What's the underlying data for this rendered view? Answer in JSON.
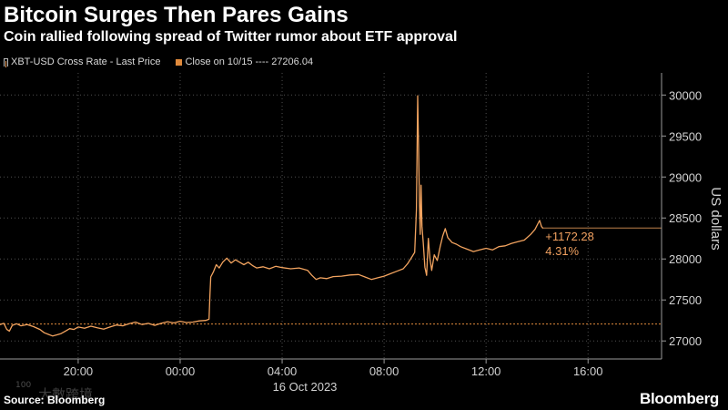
{
  "chart_data": {
    "type": "line",
    "title": "Bitcoin Surges Then Pares Gains",
    "subtitle": "Coin rallied following spread of Twitter rumor about ETF approval",
    "xlabel": "",
    "ylabel": "US dollars",
    "x_date_label": "16 Oct 2023",
    "xlim": [
      "2023-10-15T16:56",
      "2023-10-16T18:53"
    ],
    "ylim": [
      26780,
      30270
    ],
    "y_ticks": [
      27000,
      27500,
      28000,
      28500,
      29000,
      29500,
      30000
    ],
    "x_ticks": [
      {
        "t": "2023-10-15T20:00",
        "label": "20:00"
      },
      {
        "t": "2023-10-16T00:00",
        "label": "00:00"
      },
      {
        "t": "2023-10-16T04:00",
        "label": "04:00"
      },
      {
        "t": "2023-10-16T08:00",
        "label": "08:00"
      },
      {
        "t": "2023-10-16T12:00",
        "label": "12:00"
      },
      {
        "t": "2023-10-16T16:00",
        "label": "16:00"
      }
    ],
    "grid": true,
    "y_axis_side": "right",
    "legend_position": "top-left",
    "series": [
      {
        "name": "XBT-USD Cross Rate - Last Price",
        "color": "#f2a35f",
        "points": [
          [
            "2023-10-15T16:56",
            27200
          ],
          [
            "2023-10-15T17:05",
            27215
          ],
          [
            "2023-10-15T17:12",
            27140
          ],
          [
            "2023-10-15T17:18",
            27120
          ],
          [
            "2023-10-15T17:25",
            27190
          ],
          [
            "2023-10-15T17:35",
            27210
          ],
          [
            "2023-10-15T17:45",
            27185
          ],
          [
            "2023-10-15T18:00",
            27200
          ],
          [
            "2023-10-15T18:15",
            27175
          ],
          [
            "2023-10-15T18:30",
            27140
          ],
          [
            "2023-10-15T18:40",
            27100
          ],
          [
            "2023-10-15T18:50",
            27080
          ],
          [
            "2023-10-15T19:00",
            27060
          ],
          [
            "2023-10-15T19:10",
            27075
          ],
          [
            "2023-10-15T19:20",
            27090
          ],
          [
            "2023-10-15T19:30",
            27120
          ],
          [
            "2023-10-15T19:40",
            27150
          ],
          [
            "2023-10-15T19:50",
            27140
          ],
          [
            "2023-10-15T20:00",
            27170
          ],
          [
            "2023-10-15T20:15",
            27155
          ],
          [
            "2023-10-15T20:30",
            27180
          ],
          [
            "2023-10-15T20:45",
            27160
          ],
          [
            "2023-10-15T21:00",
            27145
          ],
          [
            "2023-10-15T21:15",
            27170
          ],
          [
            "2023-10-15T21:30",
            27195
          ],
          [
            "2023-10-15T21:45",
            27185
          ],
          [
            "2023-10-15T22:00",
            27210
          ],
          [
            "2023-10-15T22:15",
            27230
          ],
          [
            "2023-10-15T22:30",
            27200
          ],
          [
            "2023-10-15T22:45",
            27215
          ],
          [
            "2023-10-15T23:00",
            27190
          ],
          [
            "2023-10-15T23:15",
            27215
          ],
          [
            "2023-10-15T23:30",
            27235
          ],
          [
            "2023-10-15T23:45",
            27220
          ],
          [
            "2023-10-16T00:00",
            27240
          ],
          [
            "2023-10-16T00:15",
            27225
          ],
          [
            "2023-10-16T00:30",
            27230
          ],
          [
            "2023-10-16T00:45",
            27245
          ],
          [
            "2023-10-16T01:00",
            27250
          ],
          [
            "2023-10-16T01:08",
            27265
          ],
          [
            "2023-10-16T01:10",
            27560
          ],
          [
            "2023-10-16T01:12",
            27780
          ],
          [
            "2023-10-16T01:18",
            27840
          ],
          [
            "2023-10-16T01:25",
            27930
          ],
          [
            "2023-10-16T01:32",
            27890
          ],
          [
            "2023-10-16T01:40",
            27960
          ],
          [
            "2023-10-16T01:50",
            28010
          ],
          [
            "2023-10-16T02:00",
            27950
          ],
          [
            "2023-10-16T02:10",
            27990
          ],
          [
            "2023-10-16T02:20",
            27960
          ],
          [
            "2023-10-16T02:30",
            27930
          ],
          [
            "2023-10-16T02:40",
            27960
          ],
          [
            "2023-10-16T02:50",
            27920
          ],
          [
            "2023-10-16T03:00",
            27890
          ],
          [
            "2023-10-16T03:15",
            27905
          ],
          [
            "2023-10-16T03:30",
            27880
          ],
          [
            "2023-10-16T03:45",
            27910
          ],
          [
            "2023-10-16T04:00",
            27895
          ],
          [
            "2023-10-16T04:20",
            27880
          ],
          [
            "2023-10-16T04:40",
            27890
          ],
          [
            "2023-10-16T05:00",
            27860
          ],
          [
            "2023-10-16T05:10",
            27800
          ],
          [
            "2023-10-16T05:20",
            27750
          ],
          [
            "2023-10-16T05:30",
            27770
          ],
          [
            "2023-10-16T05:45",
            27760
          ],
          [
            "2023-10-16T06:00",
            27785
          ],
          [
            "2023-10-16T06:20",
            27790
          ],
          [
            "2023-10-16T06:40",
            27805
          ],
          [
            "2023-10-16T07:00",
            27810
          ],
          [
            "2023-10-16T07:15",
            27780
          ],
          [
            "2023-10-16T07:30",
            27750
          ],
          [
            "2023-10-16T07:45",
            27770
          ],
          [
            "2023-10-16T08:00",
            27790
          ],
          [
            "2023-10-16T08:15",
            27820
          ],
          [
            "2023-10-16T08:30",
            27850
          ],
          [
            "2023-10-16T08:45",
            27880
          ],
          [
            "2023-10-16T08:55",
            27940
          ],
          [
            "2023-10-16T09:05",
            28020
          ],
          [
            "2023-10-16T09:12",
            28080
          ],
          [
            "2023-10-16T09:16",
            28600
          ],
          [
            "2023-10-16T09:19",
            29990
          ],
          [
            "2023-10-16T09:21",
            29400
          ],
          [
            "2023-10-16T09:23",
            28700
          ],
          [
            "2023-10-16T09:25",
            28300
          ],
          [
            "2023-10-16T09:27",
            28900
          ],
          [
            "2023-10-16T09:29",
            28400
          ],
          [
            "2023-10-16T09:32",
            28200
          ],
          [
            "2023-10-16T09:36",
            27900
          ],
          [
            "2023-10-16T09:40",
            27800
          ],
          [
            "2023-10-16T09:44",
            28250
          ],
          [
            "2023-10-16T09:48",
            28000
          ],
          [
            "2023-10-16T09:52",
            27860
          ],
          [
            "2023-10-16T09:58",
            28050
          ],
          [
            "2023-10-16T10:05",
            27980
          ],
          [
            "2023-10-16T10:12",
            28150
          ],
          [
            "2023-10-16T10:18",
            28280
          ],
          [
            "2023-10-16T10:24",
            28370
          ],
          [
            "2023-10-16T10:30",
            28260
          ],
          [
            "2023-10-16T10:40",
            28200
          ],
          [
            "2023-10-16T10:50",
            28180
          ],
          [
            "2023-10-16T11:00",
            28150
          ],
          [
            "2023-10-16T11:15",
            28120
          ],
          [
            "2023-10-16T11:30",
            28090
          ],
          [
            "2023-10-16T11:45",
            28110
          ],
          [
            "2023-10-16T12:00",
            28130
          ],
          [
            "2023-10-16T12:15",
            28110
          ],
          [
            "2023-10-16T12:30",
            28150
          ],
          [
            "2023-10-16T12:45",
            28160
          ],
          [
            "2023-10-16T13:00",
            28190
          ],
          [
            "2023-10-16T13:15",
            28210
          ],
          [
            "2023-10-16T13:30",
            28230
          ],
          [
            "2023-10-16T13:45",
            28300
          ],
          [
            "2023-10-16T13:55",
            28360
          ],
          [
            "2023-10-16T14:02",
            28430
          ],
          [
            "2023-10-16T14:06",
            28470
          ],
          [
            "2023-10-16T14:10",
            28400
          ],
          [
            "2023-10-16T14:13",
            28378.32
          ]
        ]
      }
    ],
    "reference_lines": [
      {
        "name": "Close on 10/15 ---- 27206.04",
        "value": 27206.04,
        "style": "dashed",
        "color": "#e08a3c"
      }
    ],
    "last_change": {
      "abs": "+1172.28",
      "pct": "4.31%",
      "color": "#f0a060"
    }
  },
  "footer": {
    "source": "Source: Bloomberg",
    "logo": "Bloomberg"
  },
  "watermark": {
    "mark": "100",
    "text": "大數跨境"
  }
}
